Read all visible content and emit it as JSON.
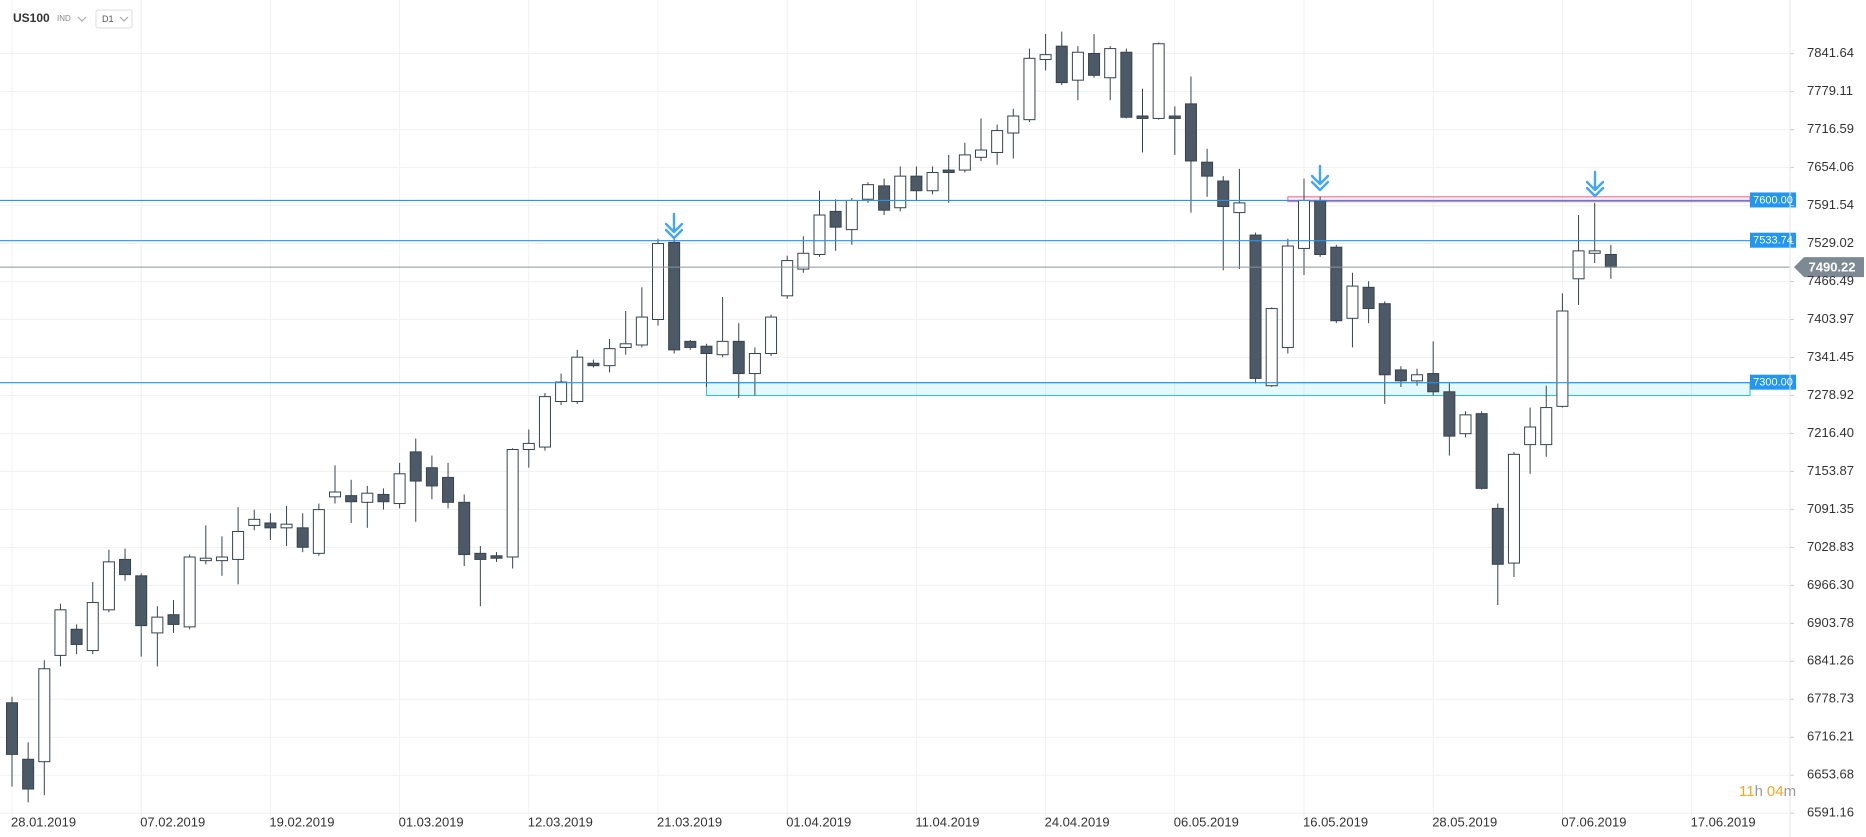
{
  "chart_data": {
    "type": "candlestick",
    "symbol": "US100",
    "instrument_type": "IND",
    "timeframe": "D1",
    "categories": [
      "28.01.2019",
      null,
      null,
      null,
      null,
      null,
      null,
      null,
      "07.02.2019",
      null,
      null,
      null,
      null,
      null,
      null,
      null,
      "19.02.2019",
      null,
      null,
      null,
      null,
      null,
      null,
      null,
      "01.03.2019",
      null,
      null,
      null,
      null,
      null,
      null,
      null,
      "12.03.2019",
      null,
      null,
      null,
      null,
      null,
      null,
      null,
      "21.03.2019",
      null,
      null,
      null,
      null,
      null,
      null,
      null,
      "01.04.2019",
      null,
      null,
      null,
      null,
      null,
      null,
      null,
      "11.04.2019",
      null,
      null,
      null,
      null,
      null,
      null,
      null,
      "24.04.2019",
      null,
      null,
      null,
      null,
      null,
      null,
      null,
      "06.05.2019",
      null,
      null,
      null,
      null,
      null,
      null,
      null,
      "16.05.2019",
      null,
      null,
      null,
      null,
      null,
      null,
      null,
      "28.05.2019",
      null,
      null,
      null,
      null,
      null,
      null,
      null,
      "07.06.2019",
      null,
      null,
      null,
      null,
      null,
      null,
      null,
      "17.06.2019"
    ],
    "open": [
      6773,
      6680,
      6676,
      6851,
      6894,
      6859,
      6926,
      7009,
      6982,
      6888,
      6918,
      6898,
      7007,
      7007,
      7009,
      7065,
      7069,
      7061,
      7061,
      7019,
      7112,
      7114,
      7103,
      7116,
      7101,
      7186,
      7160,
      7144,
      7103,
      7019,
      7015,
      7013,
      7190,
      7194,
      7269,
      7269,
      7332,
      7328,
      7358,
      7362,
      7404,
      7531,
      7368,
      7360,
      7346,
      7368,
      7315,
      7348,
      7443,
      7487,
      7511,
      7582,
      7552,
      7602,
      7624,
      7588,
      7640,
      7616,
      7650,
      7650,
      7671,
      7679,
      7711,
      7733,
      7832,
      7854,
      7798,
      7842,
      7802,
      7844,
      7739,
      7735,
      7739,
      7759,
      7663,
      7632,
      7580,
      7543,
      7295,
      7358,
      7521,
      7600,
      7523,
      7406,
      7457,
      7430,
      7321,
      7303,
      7315,
      7285,
      7216,
      7249,
      7093,
      7003,
      7198,
      7198,
      7261,
      7471,
      7513,
      7511,
      null,
      null,
      null,
      null,
      null
    ],
    "high": [
      6783,
      6708,
      6843,
      6936,
      6902,
      6972,
      7025,
      7027,
      6986,
      6932,
      6942,
      7017,
      7065,
      7047,
      7095,
      7091,
      7085,
      7097,
      7085,
      7101,
      7164,
      7140,
      7130,
      7126,
      7168,
      7208,
      7180,
      7168,
      7116,
      7031,
      7021,
      7192,
      7223,
      7283,
      7315,
      7354,
      7338,
      7372,
      7418,
      7457,
      7537,
      7537,
      7370,
      7364,
      7441,
      7398,
      7358,
      7412,
      7509,
      7541,
      7616,
      7602,
      7604,
      7630,
      7636,
      7656,
      7656,
      7656,
      7675,
      7695,
      7735,
      7725,
      7751,
      7850,
      7874,
      7878,
      7854,
      7874,
      7854,
      7850,
      7784,
      7860,
      7755,
      7804,
      7685,
      7640,
      7652,
      7547,
      7424,
      7537,
      7636,
      7606,
      7527,
      7481,
      7467,
      7434,
      7327,
      7323,
      7368,
      7299,
      7253,
      7253,
      7101,
      7186,
      7259,
      7295,
      7447,
      7576,
      7596,
      7527,
      null,
      null,
      null,
      null,
      null
    ],
    "low": [
      6635,
      6609,
      6621,
      6833,
      6853,
      6853,
      6922,
      6974,
      6849,
      6833,
      6888,
      6894,
      7001,
      6982,
      6968,
      7057,
      7041,
      7031,
      7021,
      7015,
      7101,
      7069,
      7061,
      7091,
      7093,
      7071,
      7108,
      7093,
      6998,
      6932,
      7005,
      6994,
      7160,
      7188,
      7263,
      7265,
      7325,
      7317,
      7346,
      7358,
      7394,
      7348,
      7354,
      7293,
      7342,
      7275,
      7279,
      7344,
      7438,
      7481,
      7507,
      7517,
      7527,
      7596,
      7576,
      7582,
      7600,
      7610,
      7596,
      7646,
      7665,
      7659,
      7669,
      7729,
      7814,
      7790,
      7765,
      7802,
      7765,
      7735,
      7679,
      7733,
      7675,
      7580,
      7606,
      7485,
      7487,
      7299,
      7293,
      7348,
      7477,
      7507,
      7398,
      7358,
      7398,
      7265,
      7293,
      7295,
      7279,
      7180,
      7210,
      7124,
      6934,
      6980,
      7150,
      7178,
      7259,
      7428,
      7497,
      7471,
      null,
      null,
      null,
      null,
      null
    ],
    "close": [
      6688,
      6631,
      6829,
      6926,
      6869,
      6938,
      7005,
      6984,
      6900,
      6914,
      6902,
      7013,
      7011,
      7013,
      7055,
      7075,
      7061,
      7067,
      7029,
      7091,
      7120,
      7104,
      7118,
      7104,
      7150,
      7138,
      7130,
      7103,
      7017,
      7009,
      7011,
      7190,
      7200,
      7277,
      7301,
      7342,
      7328,
      7356,
      7364,
      7408,
      7529,
      7354,
      7358,
      7348,
      7368,
      7315,
      7348,
      7408,
      7501,
      7513,
      7576,
      7556,
      7600,
      7626,
      7584,
      7640,
      7616,
      7646,
      7646,
      7675,
      7683,
      7715,
      7739,
      7834,
      7840,
      7794,
      7844,
      7806,
      7850,
      7737,
      7735,
      7858,
      7735,
      7665,
      7640,
      7590,
      7596,
      7307,
      7422,
      7525,
      7600,
      7511,
      7402,
      7459,
      7422,
      7313,
      7303,
      7313,
      7285,
      7212,
      7247,
      7126,
      7001,
      7182,
      7227,
      7259,
      7418,
      7517,
      7517,
      7490.22,
      null,
      null,
      null,
      null,
      null
    ],
    "up_color": "#ffffff",
    "down_color": "#4b5a66",
    "ylim": [
      6580,
      7930
    ],
    "yticks": [
      7841.64,
      7779.11,
      7716.59,
      7654.06,
      7591.54,
      7529.02,
      7466.49,
      7403.97,
      7341.45,
      7278.92,
      {
        "value": 7216.4,
        "label": "7216.40"
      },
      7153.87,
      7091.35,
      7028.83,
      {
        "value": 6966.3,
        "label": "6966.30"
      },
      6903.78,
      6841.26,
      6778.73,
      6716.21,
      6653.68,
      6591.16
    ],
    "grid": true,
    "hlines": [
      {
        "value": 7600,
        "label": "7600.00"
      },
      7533.74,
      {
        "value": 7300,
        "label": "7300.00"
      }
    ],
    "hline_color": "#2196f3",
    "current_price": 7490.22,
    "zones": [
      {
        "from": 7278.9,
        "to": 7300,
        "start": 43,
        "color": "#26c6da"
      },
      {
        "from": 7598,
        "to": 7606,
        "start": 79,
        "color": "#f06292"
      }
    ],
    "countdown": {
      "hours": "11",
      "hours_unit": "h",
      "minutes": "04",
      "minutes_unit": "m"
    }
  }
}
